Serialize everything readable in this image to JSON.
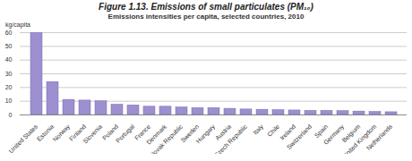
{
  "chart_data": {
    "type": "bar",
    "title": "Figure 1.13.  Emissions of small particulates (PM₁₀)",
    "subtitle": "Emissions intensities per capita, selected countries, 2010",
    "y_label": "kg/capita",
    "categories": [
      "United States",
      "Estonia",
      "Norway",
      "Finland",
      "Slovenia",
      "Poland",
      "Portugal",
      "France",
      "Denmark",
      "Slovak Republic",
      "Sweden",
      "Hungary",
      "Austria",
      "Czech Republic",
      "Italy",
      "Chile",
      "Ireland",
      "Switzerland",
      "Spain",
      "Germany",
      "Belgium",
      "United Kingdom",
      "Netherlands"
    ],
    "values": [
      60,
      24,
      11,
      10.5,
      10,
      7.5,
      7,
      6,
      6,
      5.5,
      5,
      5,
      4.5,
      4,
      3.8,
      3.5,
      3.3,
      3,
      3,
      2.8,
      2.5,
      2.2,
      2
    ],
    "color": "#9d8fd0",
    "ylim": [
      0,
      60
    ],
    "yticks": [
      0,
      10,
      20,
      30,
      40,
      50,
      60
    ],
    "grid": true
  }
}
